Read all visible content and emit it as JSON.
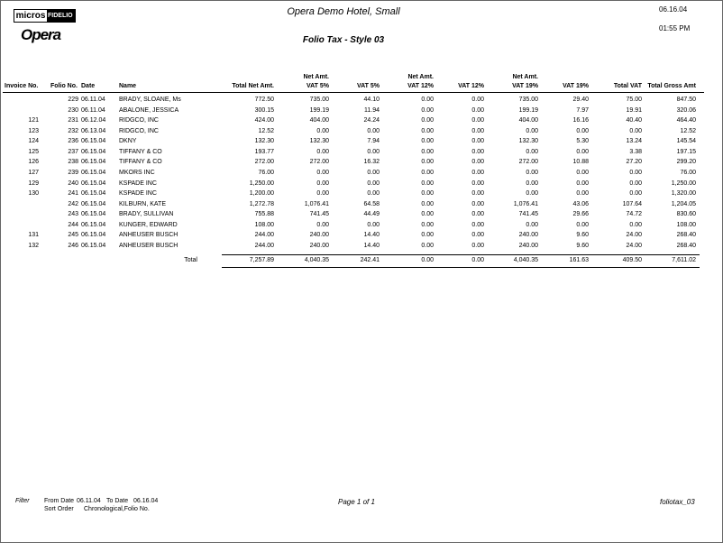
{
  "header": {
    "logo_micros": "micros",
    "logo_fidelio": "FIDELIO",
    "logo_opera": "Opera",
    "hotel": "Opera Demo Hotel, Small",
    "date": "06.16.04",
    "time": "01:55 PM",
    "title": "Folio Tax - Style 03"
  },
  "table": {
    "columns": [
      [
        "Invoice No."
      ],
      [
        "Folio No."
      ],
      [
        "Date"
      ],
      [
        "Name"
      ],
      [
        "Total Net Amt."
      ],
      [
        "Net Amt.",
        "VAT 5%"
      ],
      [
        "VAT 5%"
      ],
      [
        "Net Amt.",
        "VAT 12%"
      ],
      [
        "VAT 12%"
      ],
      [
        "Net Amt.",
        "VAT 19%"
      ],
      [
        "VAT 19%"
      ],
      [
        "Total VAT"
      ],
      [
        "Total Gross Amt"
      ]
    ],
    "rows": [
      [
        "",
        "229",
        "06.11.04",
        "BRADY, SLOANE, Ms",
        "772.50",
        "735.00",
        "44.10",
        "0.00",
        "0.00",
        "735.00",
        "29.40",
        "75.00",
        "847.50"
      ],
      [
        "",
        "230",
        "06.11.04",
        "ABALONE, JESSICA",
        "300.15",
        "199.19",
        "11.94",
        "0.00",
        "0.00",
        "199.19",
        "7.97",
        "19.91",
        "320.06"
      ],
      [
        "121",
        "231",
        "06.12.04",
        "RIDGCO, INC",
        "424.00",
        "404.00",
        "24.24",
        "0.00",
        "0.00",
        "404.00",
        "16.16",
        "40.40",
        "464.40"
      ],
      [
        "123",
        "232",
        "06.13.04",
        "RIDGCO, INC",
        "12.52",
        "0.00",
        "0.00",
        "0.00",
        "0.00",
        "0.00",
        "0.00",
        "0.00",
        "12.52"
      ],
      [
        "124",
        "236",
        "06.15.04",
        "DKNY",
        "132.30",
        "132.30",
        "7.94",
        "0.00",
        "0.00",
        "132.30",
        "5.30",
        "13.24",
        "145.54"
      ],
      [
        "125",
        "237",
        "06.15.04",
        "TIFFANY & CO",
        "193.77",
        "0.00",
        "0.00",
        "0.00",
        "0.00",
        "0.00",
        "0.00",
        "3.38",
        "197.15"
      ],
      [
        "126",
        "238",
        "06.15.04",
        "TIFFANY & CO",
        "272.00",
        "272.00",
        "16.32",
        "0.00",
        "0.00",
        "272.00",
        "10.88",
        "27.20",
        "299.20"
      ],
      [
        "127",
        "239",
        "06.15.04",
        "MKORS INC",
        "76.00",
        "0.00",
        "0.00",
        "0.00",
        "0.00",
        "0.00",
        "0.00",
        "0.00",
        "76.00"
      ],
      [
        "129",
        "240",
        "06.15.04",
        "KSPADE INC",
        "1,250.00",
        "0.00",
        "0.00",
        "0.00",
        "0.00",
        "0.00",
        "0.00",
        "0.00",
        "1,250.00"
      ],
      [
        "130",
        "241",
        "06.15.04",
        "KSPADE INC",
        "1,200.00",
        "0.00",
        "0.00",
        "0.00",
        "0.00",
        "0.00",
        "0.00",
        "0.00",
        "1,320.00"
      ],
      [
        "",
        "242",
        "06.15.04",
        "KILBURN, KATE",
        "1,272.78",
        "1,076.41",
        "64.58",
        "0.00",
        "0.00",
        "1,076.41",
        "43.06",
        "107.64",
        "1,204.05"
      ],
      [
        "",
        "243",
        "06.15.04",
        "BRADY, SULLIVAN",
        "755.88",
        "741.45",
        "44.49",
        "0.00",
        "0.00",
        "741.45",
        "29.66",
        "74.72",
        "830.60"
      ],
      [
        "",
        "244",
        "06.15.04",
        "KUNGER, EDWARD",
        "108.00",
        "0.00",
        "0.00",
        "0.00",
        "0.00",
        "0.00",
        "0.00",
        "0.00",
        "108.00"
      ],
      [
        "131",
        "245",
        "06.15.04",
        "ANHEUSER BUSCH",
        "244.00",
        "240.00",
        "14.40",
        "0.00",
        "0.00",
        "240.00",
        "9.60",
        "24.00",
        "268.40"
      ],
      [
        "132",
        "246",
        "06.15.04",
        "ANHEUSER BUSCH",
        "244.00",
        "240.00",
        "14.40",
        "0.00",
        "0.00",
        "240.00",
        "9.60",
        "24.00",
        "268.40"
      ]
    ],
    "total": {
      "label": "Total",
      "values": [
        "7,257.89",
        "4,040.35",
        "242.41",
        "0.00",
        "0.00",
        "4,040.35",
        "161.63",
        "409.50",
        "7,611.02"
      ]
    }
  },
  "footer": {
    "filter": "Filter",
    "from_label": "From Date",
    "from": "06.11.04",
    "to_label": "To Date",
    "to": "06.16.04",
    "sort_label": "Sort Order",
    "sort": "Chronological,Folio No.",
    "page": "Page 1 of 1",
    "report": "foliotax_03"
  }
}
